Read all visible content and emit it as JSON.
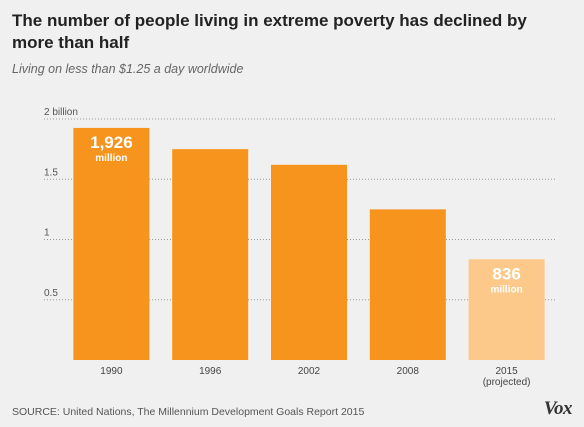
{
  "header": {
    "title": "The number of people living in extreme poverty has declined by more than half",
    "subtitle": "Living on less than $1.25 a day worldwide"
  },
  "footer": {
    "source": "SOURCE: United Nations, The Millennium Development Goals Report 2015",
    "logo": "Vox"
  },
  "colors": {
    "bar": "#f7941d",
    "bar_projected": "#fdc98a",
    "grid": "#999999",
    "background": "#f0f0f0"
  },
  "chart_data": {
    "type": "bar",
    "categories": [
      "1990",
      "1996",
      "2002",
      "2008",
      "2015\n(projected)"
    ],
    "values": [
      1.926,
      1.75,
      1.62,
      1.25,
      0.836
    ],
    "projected": [
      false,
      false,
      false,
      false,
      true
    ],
    "yunit": "billion",
    "ylim": [
      0,
      2
    ],
    "yticks": [
      {
        "value": 0.5,
        "label": "0.5"
      },
      {
        "value": 1,
        "label": "1"
      },
      {
        "value": 1.5,
        "label": "1.5"
      },
      {
        "value": 2,
        "label": "2 billion"
      }
    ],
    "annotations": [
      {
        "index": 0,
        "value": "1,926",
        "unit": "million"
      },
      {
        "index": 4,
        "value": "836",
        "unit": "million"
      }
    ],
    "grid": true,
    "grid_style": "dotted"
  }
}
